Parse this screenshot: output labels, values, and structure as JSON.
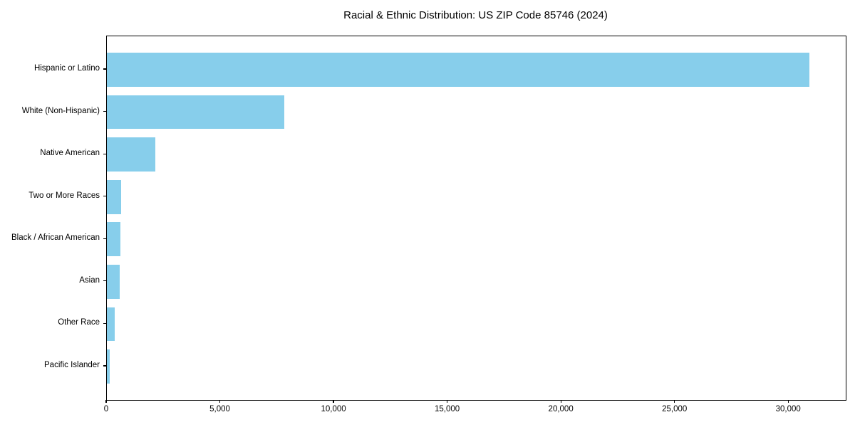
{
  "chart_data": {
    "type": "bar",
    "orientation": "horizontal",
    "title": "Racial & Ethnic Distribution: US ZIP Code 85746 (2024)",
    "categories": [
      "Hispanic or Latino",
      "White (Non-Hispanic)",
      "Native American",
      "Two or More Races",
      "Black / African American",
      "Asian",
      "Other Race",
      "Pacific Islander"
    ],
    "values": [
      30900,
      7800,
      2130,
      640,
      610,
      560,
      340,
      110
    ],
    "xlabel": "",
    "ylabel": "",
    "xlim": [
      0,
      32500
    ],
    "xticks": [
      0,
      5000,
      10000,
      15000,
      20000,
      25000,
      30000
    ],
    "bar_color": "#87CEEB",
    "grid": false,
    "legend": null,
    "background_color": "#ffffff",
    "spine_color": "#000000"
  }
}
